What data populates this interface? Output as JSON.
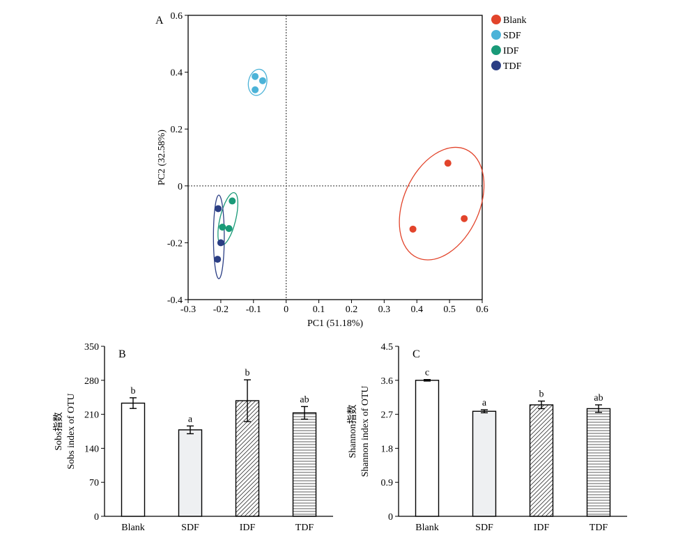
{
  "chart_data": [
    {
      "panel": "A",
      "type": "scatter",
      "xlabel": "PC1 (51.18%)",
      "ylabel": "PC2 (32.58%)",
      "xlim": [
        -0.3,
        0.6
      ],
      "ylim": [
        -0.4,
        0.6
      ],
      "xticks": [
        "-0.3",
        "-0.2",
        "-0.1",
        "0",
        "0.1",
        "0.2",
        "0.3",
        "0.4",
        "0.5",
        "0.6"
      ],
      "yticks": [
        "-0.4",
        "-0.2",
        "0",
        "0.2",
        "0.4",
        "0.6"
      ],
      "reference_lines": {
        "x": 0,
        "y": 0,
        "style": "dotted"
      },
      "legend_position": "top-right",
      "grid": false,
      "series": [
        {
          "name": "Blank",
          "color": "#e2442b",
          "points": [
            [
              0.495,
              0.08
            ],
            [
              0.545,
              -0.115
            ],
            [
              0.388,
              -0.152
            ]
          ]
        },
        {
          "name": "SDF",
          "color": "#4cb3d8",
          "points": [
            [
              -0.095,
              0.385
            ],
            [
              -0.072,
              0.37
            ],
            [
              -0.095,
              0.338
            ]
          ]
        },
        {
          "name": "IDF",
          "color": "#1a9a78",
          "points": [
            [
              -0.165,
              -0.053
            ],
            [
              -0.195,
              -0.145
            ],
            [
              -0.175,
              -0.15
            ]
          ]
        },
        {
          "name": "TDF",
          "color": "#2b3e84",
          "points": [
            [
              -0.208,
              -0.08
            ],
            [
              -0.2,
              -0.2
            ],
            [
              -0.21,
              -0.258
            ]
          ]
        }
      ]
    },
    {
      "panel": "B",
      "type": "bar",
      "ylabel_lines": [
        "Sobs指数",
        "Sobs index of OTU"
      ],
      "categories": [
        "Blank",
        "SDF",
        "IDF",
        "TDF"
      ],
      "values": [
        233,
        178,
        238,
        213
      ],
      "errors": [
        11,
        8,
        43,
        13
      ],
      "significance": [
        "b",
        "a",
        "b",
        "ab"
      ],
      "patterns": [
        "white",
        "light-gray",
        "diagonal",
        "horizontal"
      ],
      "ylim": [
        0,
        350
      ],
      "yticks": [
        "0",
        "70",
        "140",
        "210",
        "280",
        "350"
      ],
      "grid": false
    },
    {
      "panel": "C",
      "type": "bar",
      "ylabel_lines": [
        "Shannon指数",
        "Shannon index of OTU"
      ],
      "categories": [
        "Blank",
        "SDF",
        "IDF",
        "TDF"
      ],
      "values": [
        3.6,
        2.78,
        2.95,
        2.85
      ],
      "errors": [
        0.02,
        0.04,
        0.1,
        0.1
      ],
      "significance": [
        "c",
        "a",
        "b",
        "ab"
      ],
      "patterns": [
        "white",
        "light-gray",
        "diagonal",
        "horizontal"
      ],
      "ylim": [
        0,
        4.5
      ],
      "yticks": [
        "0",
        "0.9",
        "1.8",
        "2.7",
        "3.6",
        "4.5"
      ],
      "grid": false
    }
  ]
}
